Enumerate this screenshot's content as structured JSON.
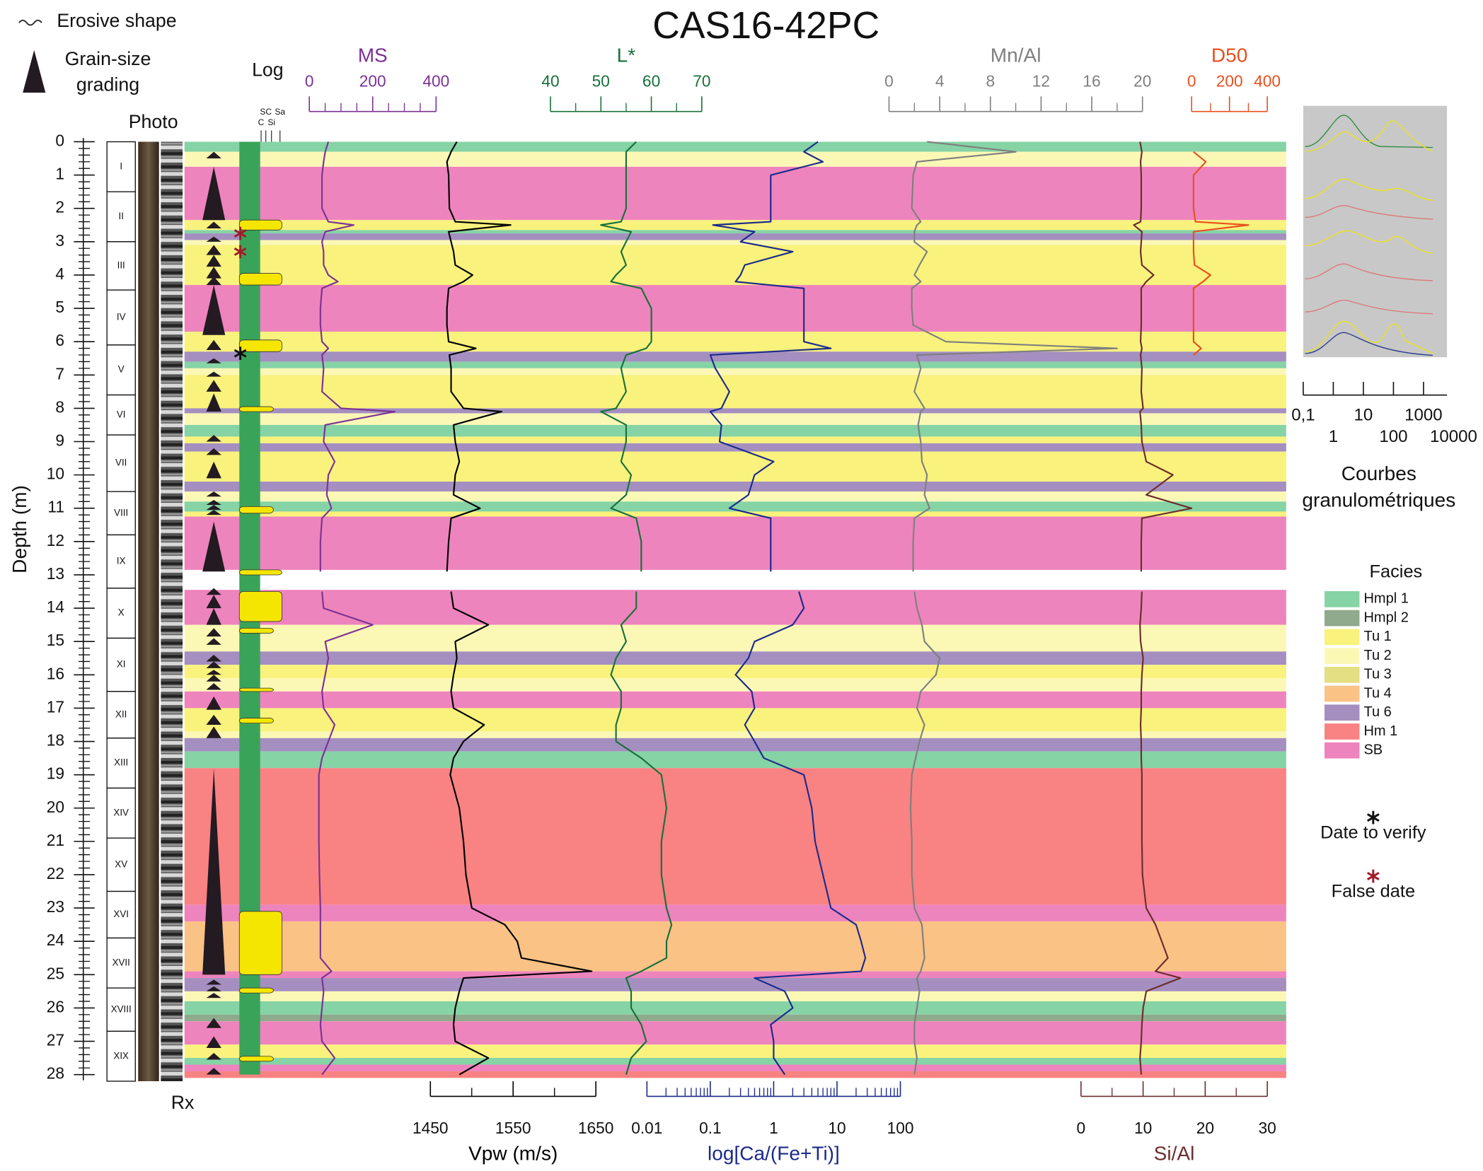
{
  "chart_data": {
    "type": "well-log",
    "title": "CAS16-42PC",
    "depth_axis": {
      "label": "Depth (m)",
      "ylim": [
        0,
        28
      ],
      "yticks": [
        0,
        1,
        2,
        3,
        4,
        5,
        6,
        7,
        8,
        9,
        10,
        11,
        12,
        13,
        14,
        15,
        16,
        17,
        18,
        19,
        20,
        21,
        22,
        23,
        24,
        25,
        26,
        27,
        28
      ]
    },
    "depth": [
      0,
      0.3,
      0.6,
      1,
      2,
      2.4,
      2.5,
      2.7,
      3.0,
      3.3,
      3.7,
      4.0,
      4.2,
      4.4,
      5,
      5.5,
      6.0,
      6.2,
      6.4,
      6.8,
      7.5,
      8.0,
      8.1,
      8.5,
      9.0,
      9.6,
      10.0,
      10.6,
      11.0,
      11.3,
      12,
      12.9,
      13.2,
      13.5,
      14,
      14.5,
      15,
      15.5,
      16,
      16.5,
      17,
      17.5,
      18,
      18.5,
      19,
      20,
      21,
      22,
      23,
      23.5,
      24,
      24.5,
      24.9,
      25.1,
      25.5,
      26,
      26.5,
      27,
      27.5,
      28
    ],
    "tracks": [
      {
        "name": "MS",
        "color": "#7b3294",
        "position": "top",
        "xlim": [
          0,
          400
        ],
        "xticks": [
          0,
          200,
          400
        ],
        "values": [
          60,
          50,
          45,
          40,
          40,
          60,
          140,
          50,
          40,
          45,
          45,
          60,
          90,
          40,
          35,
          35,
          40,
          60,
          40,
          45,
          40,
          100,
          270,
          50,
          45,
          80,
          60,
          55,
          70,
          40,
          35,
          35,
          null,
          40,
          45,
          200,
          50,
          60,
          50,
          40,
          45,
          80,
          60,
          40,
          30,
          30,
          30,
          32,
          35,
          35,
          35,
          35,
          70,
          40,
          45,
          40,
          35,
          40,
          80,
          40
        ]
      },
      {
        "name": "L*",
        "color": "#18703a",
        "position": "top",
        "xlim": [
          40,
          70
        ],
        "xticks": [
          40,
          50,
          60,
          70
        ],
        "values": [
          57,
          55,
          55,
          55,
          55,
          54,
          50,
          56,
          55,
          54,
          55,
          53,
          52,
          58,
          60,
          60,
          60,
          59,
          55,
          54,
          55,
          53,
          50,
          55,
          55,
          54,
          56,
          55,
          52,
          57,
          58,
          58,
          null,
          57,
          57,
          54,
          55,
          53,
          52,
          54,
          54,
          53,
          53,
          58,
          62,
          63,
          62,
          62,
          63,
          64,
          63,
          63,
          58,
          55,
          56,
          56,
          58,
          59,
          56,
          55
        ]
      },
      {
        "name": "Mn/Al",
        "color": "#7f7f7f",
        "position": "top",
        "xlim": [
          0,
          20
        ],
        "xticks": [
          0,
          4,
          8,
          12,
          16,
          20
        ],
        "values": [
          3,
          10,
          2.2,
          1.9,
          1.8,
          2.5,
          2.2,
          2,
          2,
          3,
          2.4,
          2,
          2.5,
          1.8,
          1.8,
          1.9,
          4.5,
          18,
          2.2,
          2.5,
          2,
          2.8,
          2.5,
          2.3,
          2.5,
          2.6,
          3,
          2.8,
          3.2,
          2,
          1.9,
          1.9,
          null,
          2,
          2.2,
          2.6,
          2.8,
          4,
          3.7,
          2.5,
          2.2,
          2.8,
          2.4,
          2.1,
          1.8,
          1.7,
          1.8,
          1.8,
          2,
          2.6,
          2.7,
          2.8,
          2.5,
          2.2,
          2.4,
          2.2,
          2,
          2,
          2.2,
          2
        ]
      },
      {
        "name": "D50",
        "color": "#e8501e",
        "position": "top",
        "xlim": [
          0,
          400
        ],
        "xticks": [
          0,
          200,
          400
        ],
        "values": [
          null,
          10,
          75,
          10,
          10,
          20,
          300,
          10,
          10,
          10,
          15,
          100,
          60,
          10,
          10,
          10,
          10,
          50,
          10,
          null,
          null,
          null,
          null,
          null,
          null,
          null,
          null,
          null,
          null,
          null,
          null,
          null,
          null,
          null,
          null,
          null,
          null,
          null,
          null,
          null,
          null,
          null,
          null,
          null,
          null,
          null,
          null,
          null,
          null,
          null,
          null,
          null,
          null,
          null,
          null,
          null,
          null,
          null,
          null,
          null
        ]
      },
      {
        "name": "Vpw (m/s)",
        "color": "#000000",
        "position": "bottom",
        "xlim": [
          1450,
          1650
        ],
        "xticks": [
          1450,
          1550,
          1650
        ],
        "values": [
          1482,
          1475,
          1470,
          1472,
          1473,
          1480,
          1547,
          1472,
          1475,
          1478,
          1480,
          1501,
          1490,
          1472,
          1470,
          1470,
          1472,
          1505,
          1473,
          1475,
          1475,
          1490,
          1536,
          1478,
          1480,
          1485,
          1480,
          1478,
          1510,
          1475,
          1472,
          1470,
          null,
          1475,
          1478,
          1520,
          1480,
          1482,
          1478,
          1475,
          1478,
          1515,
          1490,
          1478,
          1474,
          1485,
          1490,
          1493,
          1500,
          1540,
          1555,
          1560,
          1645,
          1490,
          1485,
          1480,
          1478,
          1480,
          1520,
          1485
        ]
      },
      {
        "name": "log[Ca/(Fe+Ti)]",
        "color": "#1b2a8c",
        "position": "bottom",
        "log": true,
        "xlim": [
          0.01,
          100
        ],
        "xticks": [
          0.01,
          0.1,
          1,
          10,
          100
        ],
        "values": [
          5,
          3,
          6,
          0.9,
          0.9,
          0.9,
          0.11,
          0.5,
          0.3,
          2,
          0.35,
          0.3,
          0.25,
          3,
          3,
          3,
          3,
          8,
          0.1,
          0.12,
          0.2,
          0.15,
          0.1,
          0.15,
          0.14,
          1,
          0.5,
          0.4,
          0.2,
          0.9,
          0.9,
          0.9,
          null,
          2.5,
          3,
          2,
          0.5,
          0.4,
          0.25,
          0.45,
          0.5,
          0.35,
          0.5,
          0.7,
          3,
          4,
          4.5,
          6,
          8,
          20,
          24,
          28,
          24,
          0.5,
          1.5,
          2,
          0.9,
          1,
          1,
          1.5
        ]
      },
      {
        "name": "Si/Al",
        "color": "#6b2d2d",
        "position": "bottom",
        "xlim": [
          0,
          30
        ],
        "xticks": [
          0,
          10,
          20,
          30
        ],
        "values": [
          9.5,
          9.8,
          9.6,
          9.7,
          9.7,
          9.6,
          8.5,
          9.8,
          9.7,
          9.6,
          9.8,
          11.7,
          10.5,
          9.7,
          9.7,
          9.7,
          9.6,
          9.8,
          9.6,
          9.8,
          9.7,
          10,
          9.5,
          9.7,
          9.8,
          10.5,
          14.8,
          10.5,
          17.8,
          9.8,
          9.7,
          9.7,
          null,
          9.8,
          9.7,
          9.5,
          9.6,
          10,
          9.8,
          9.7,
          9.7,
          9.6,
          9.7,
          9.7,
          9.8,
          9.8,
          9.8,
          9.9,
          10.5,
          12,
          13,
          14,
          12,
          16,
          10.5,
          10,
          9.8,
          9.7,
          9.5,
          9.7
        ]
      }
    ],
    "facies_legend": {
      "title": "Facies",
      "items": [
        {
          "name": "Hmpl 1",
          "color": "#86d3a5"
        },
        {
          "name": "Hmpl 2",
          "color": "#8faa8c"
        },
        {
          "name": "Tu 1",
          "color": "#f9f27c"
        },
        {
          "name": "Tu 2",
          "color": "#fbf8b6"
        },
        {
          "name": "Tu 3",
          "color": "#e3df82"
        },
        {
          "name": "Tu 4",
          "color": "#fac285"
        },
        {
          "name": "Tu 6",
          "color": "#a48fc0"
        },
        {
          "name": "Hm 1",
          "color": "#f98282"
        },
        {
          "name": "SB",
          "color": "#ee84bd"
        }
      ]
    },
    "intervals": [
      {
        "top": 0,
        "bottom": 0.3,
        "facies": "Hmpl 1"
      },
      {
        "top": 0.3,
        "bottom": 0.75,
        "facies": "Tu 2"
      },
      {
        "top": 0.75,
        "bottom": 2.35,
        "facies": "SB"
      },
      {
        "top": 2.35,
        "bottom": 2.65,
        "facies": "Tu 1"
      },
      {
        "top": 2.65,
        "bottom": 2.75,
        "facies": "Hmpl 1"
      },
      {
        "top": 2.75,
        "bottom": 2.95,
        "facies": "Tu 6"
      },
      {
        "top": 2.95,
        "bottom": 3.1,
        "facies": "Tu 2"
      },
      {
        "top": 3.1,
        "bottom": 4.3,
        "facies": "Tu 1"
      },
      {
        "top": 4.3,
        "bottom": 5.7,
        "facies": "SB"
      },
      {
        "top": 5.7,
        "bottom": 6.3,
        "facies": "Tu 1"
      },
      {
        "top": 6.3,
        "bottom": 6.6,
        "facies": "Tu 6"
      },
      {
        "top": 6.6,
        "bottom": 6.8,
        "facies": "Hmpl 1"
      },
      {
        "top": 6.8,
        "bottom": 7.0,
        "facies": "Tu 2"
      },
      {
        "top": 7.0,
        "bottom": 8.0,
        "facies": "Tu 1"
      },
      {
        "top": 8.0,
        "bottom": 8.15,
        "facies": "Tu 6"
      },
      {
        "top": 8.15,
        "bottom": 8.5,
        "facies": "Tu 2"
      },
      {
        "top": 8.5,
        "bottom": 8.85,
        "facies": "Hmpl 1"
      },
      {
        "top": 8.85,
        "bottom": 9.05,
        "facies": "Tu 1"
      },
      {
        "top": 9.05,
        "bottom": 9.3,
        "facies": "Tu 6"
      },
      {
        "top": 9.3,
        "bottom": 10.2,
        "facies": "Tu 1"
      },
      {
        "top": 10.2,
        "bottom": 10.5,
        "facies": "Tu 6"
      },
      {
        "top": 10.5,
        "bottom": 10.8,
        "facies": "Tu 2"
      },
      {
        "top": 10.8,
        "bottom": 11.1,
        "facies": "Hmpl 1"
      },
      {
        "top": 11.1,
        "bottom": 11.25,
        "facies": "Tu 1"
      },
      {
        "top": 11.25,
        "bottom": 12.85,
        "facies": "SB"
      },
      {
        "top": 13.45,
        "bottom": 14.5,
        "facies": "SB"
      },
      {
        "top": 14.5,
        "bottom": 15.3,
        "facies": "Tu 2"
      },
      {
        "top": 15.3,
        "bottom": 15.7,
        "facies": "Tu 6"
      },
      {
        "top": 15.7,
        "bottom": 16.1,
        "facies": "Tu 1"
      },
      {
        "top": 16.1,
        "bottom": 16.5,
        "facies": "Tu 2"
      },
      {
        "top": 16.5,
        "bottom": 17.0,
        "facies": "SB"
      },
      {
        "top": 17.0,
        "bottom": 17.7,
        "facies": "Tu 1"
      },
      {
        "top": 17.7,
        "bottom": 17.9,
        "facies": "Tu 2"
      },
      {
        "top": 17.9,
        "bottom": 18.3,
        "facies": "Tu 6"
      },
      {
        "top": 18.3,
        "bottom": 18.8,
        "facies": "Hmpl 1"
      },
      {
        "top": 18.8,
        "bottom": 22.9,
        "facies": "Hm 1"
      },
      {
        "top": 22.9,
        "bottom": 23.4,
        "facies": "SB"
      },
      {
        "top": 23.4,
        "bottom": 24.9,
        "facies": "Tu 4"
      },
      {
        "top": 24.9,
        "bottom": 25.1,
        "facies": "SB"
      },
      {
        "top": 25.1,
        "bottom": 25.5,
        "facies": "Tu 6"
      },
      {
        "top": 25.5,
        "bottom": 25.8,
        "facies": "Tu 2"
      },
      {
        "top": 25.8,
        "bottom": 26.2,
        "facies": "Hmpl 1"
      },
      {
        "top": 26.2,
        "bottom": 26.4,
        "facies": "Hmpl 2"
      },
      {
        "top": 26.4,
        "bottom": 27.1,
        "facies": "SB"
      },
      {
        "top": 27.1,
        "bottom": 27.5,
        "facies": "Tu 1"
      },
      {
        "top": 27.5,
        "bottom": 27.7,
        "facies": "Hmpl 1"
      },
      {
        "top": 27.7,
        "bottom": 27.9,
        "facies": "SB"
      },
      {
        "top": 27.9,
        "bottom": 28.1,
        "facies": "Hm 1"
      }
    ],
    "units": [
      {
        "label": "I",
        "top": 0,
        "bottom": 1.5
      },
      {
        "label": "II",
        "top": 1.5,
        "bottom": 3.0
      },
      {
        "label": "III",
        "top": 3.0,
        "bottom": 4.45
      },
      {
        "label": "IV",
        "top": 4.45,
        "bottom": 6.1
      },
      {
        "label": "V",
        "top": 6.1,
        "bottom": 7.6
      },
      {
        "label": "VI",
        "top": 7.6,
        "bottom": 8.8
      },
      {
        "label": "VII",
        "top": 8.8,
        "bottom": 10.5
      },
      {
        "label": "VIII",
        "top": 10.5,
        "bottom": 11.8
      },
      {
        "label": "IX",
        "top": 11.8,
        "bottom": 13.4
      },
      {
        "label": "X",
        "top": 13.4,
        "bottom": 14.9
      },
      {
        "label": "XI",
        "top": 14.9,
        "bottom": 16.5
      },
      {
        "label": "XII",
        "top": 16.5,
        "bottom": 17.9
      },
      {
        "label": "XIII",
        "top": 17.9,
        "bottom": 19.4
      },
      {
        "label": "XIV",
        "top": 19.4,
        "bottom": 20.9
      },
      {
        "label": "XV",
        "top": 20.9,
        "bottom": 22.5
      },
      {
        "label": "XVI",
        "top": 22.5,
        "bottom": 23.9
      },
      {
        "label": "XVII",
        "top": 23.9,
        "bottom": 25.4
      },
      {
        "label": "XVIII",
        "top": 25.4,
        "bottom": 26.7
      },
      {
        "label": "XIX",
        "top": 26.7,
        "bottom": 28.3
      }
    ],
    "grading": [
      [
        0.3,
        0.5
      ],
      [
        0.75,
        2.35
      ],
      [
        2.4,
        2.6
      ],
      [
        2.85,
        3.0
      ],
      [
        3.1,
        3.4
      ],
      [
        3.4,
        3.75
      ],
      [
        3.75,
        4.1
      ],
      [
        4.05,
        4.3
      ],
      [
        4.3,
        5.8
      ],
      [
        5.95,
        6.25
      ],
      [
        6.5,
        6.65
      ],
      [
        6.9,
        7.05
      ],
      [
        7.15,
        7.5
      ],
      [
        7.55,
        8.1
      ],
      [
        8.8,
        9.0
      ],
      [
        9.2,
        9.4
      ],
      [
        9.6,
        10.1
      ],
      [
        10.5,
        10.65
      ],
      [
        10.75,
        10.9
      ],
      [
        10.9,
        11.05
      ],
      [
        11.05,
        11.2
      ],
      [
        11.4,
        12.9
      ],
      [
        13.4,
        13.6
      ],
      [
        13.6,
        14.0
      ],
      [
        14.0,
        14.5
      ],
      [
        14.6,
        14.85
      ],
      [
        14.9,
        15.1
      ],
      [
        15.4,
        15.6
      ],
      [
        15.6,
        15.8
      ],
      [
        15.85,
        16.0
      ],
      [
        16.0,
        16.2
      ],
      [
        16.25,
        16.45
      ],
      [
        16.65,
        17.05
      ],
      [
        17.2,
        17.5
      ],
      [
        17.55,
        17.9
      ],
      [
        18.8,
        25.0
      ],
      [
        25.15,
        25.3
      ],
      [
        25.35,
        25.5
      ],
      [
        25.55,
        25.7
      ],
      [
        26.3,
        26.6
      ],
      [
        26.85,
        27.2
      ],
      [
        27.35,
        27.55
      ],
      [
        27.8,
        28.0
      ]
    ],
    "log_column": {
      "title": "Log",
      "classes": [
        "C",
        "SC",
        "Si",
        "Sa"
      ],
      "beds": [
        {
          "top": 2.35,
          "bottom": 2.65,
          "class": "Sa"
        },
        {
          "top": 3.95,
          "bottom": 4.3,
          "class": "Sa"
        },
        {
          "top": 5.95,
          "bottom": 6.3,
          "class": "Sa"
        },
        {
          "top": 7.95,
          "bottom": 8.1,
          "class": "Si"
        },
        {
          "top": 10.95,
          "bottom": 11.15,
          "class": "Si"
        },
        {
          "top": 12.85,
          "bottom": 13.0,
          "class": "Sa"
        },
        {
          "top": 13.5,
          "bottom": 14.4,
          "class": "Sa"
        },
        {
          "top": 14.6,
          "bottom": 14.75,
          "class": "Si"
        },
        {
          "top": 16.4,
          "bottom": 16.5,
          "class": "Si"
        },
        {
          "top": 17.3,
          "bottom": 17.45,
          "class": "Si"
        },
        {
          "top": 23.1,
          "bottom": 25.0,
          "class": "Sa"
        },
        {
          "top": 25.4,
          "bottom": 25.55,
          "class": "Si"
        },
        {
          "top": 27.45,
          "bottom": 27.6,
          "class": "Si"
        }
      ]
    },
    "dates": {
      "false_date": [
        2.75,
        3.3
      ],
      "false_date_color": "#a01c2a",
      "to_verify": [
        6.35
      ],
      "to_verify_color": "#111111"
    },
    "grain_size_axis": {
      "label": "Courbes granulométriques",
      "log": true,
      "xlim": [
        0.1,
        10000
      ],
      "xticks": [
        {
          "value": 0.1,
          "label": "0,1"
        },
        1,
        10,
        100,
        1000,
        10000
      ]
    },
    "annotations": {
      "erosive_shape": "Erosive shape",
      "grain_size_grading": "Grain-size grading",
      "photo": "Photo",
      "rx": "Rx",
      "date_to_verify": "Date to verify",
      "false_date": "False date"
    }
  }
}
